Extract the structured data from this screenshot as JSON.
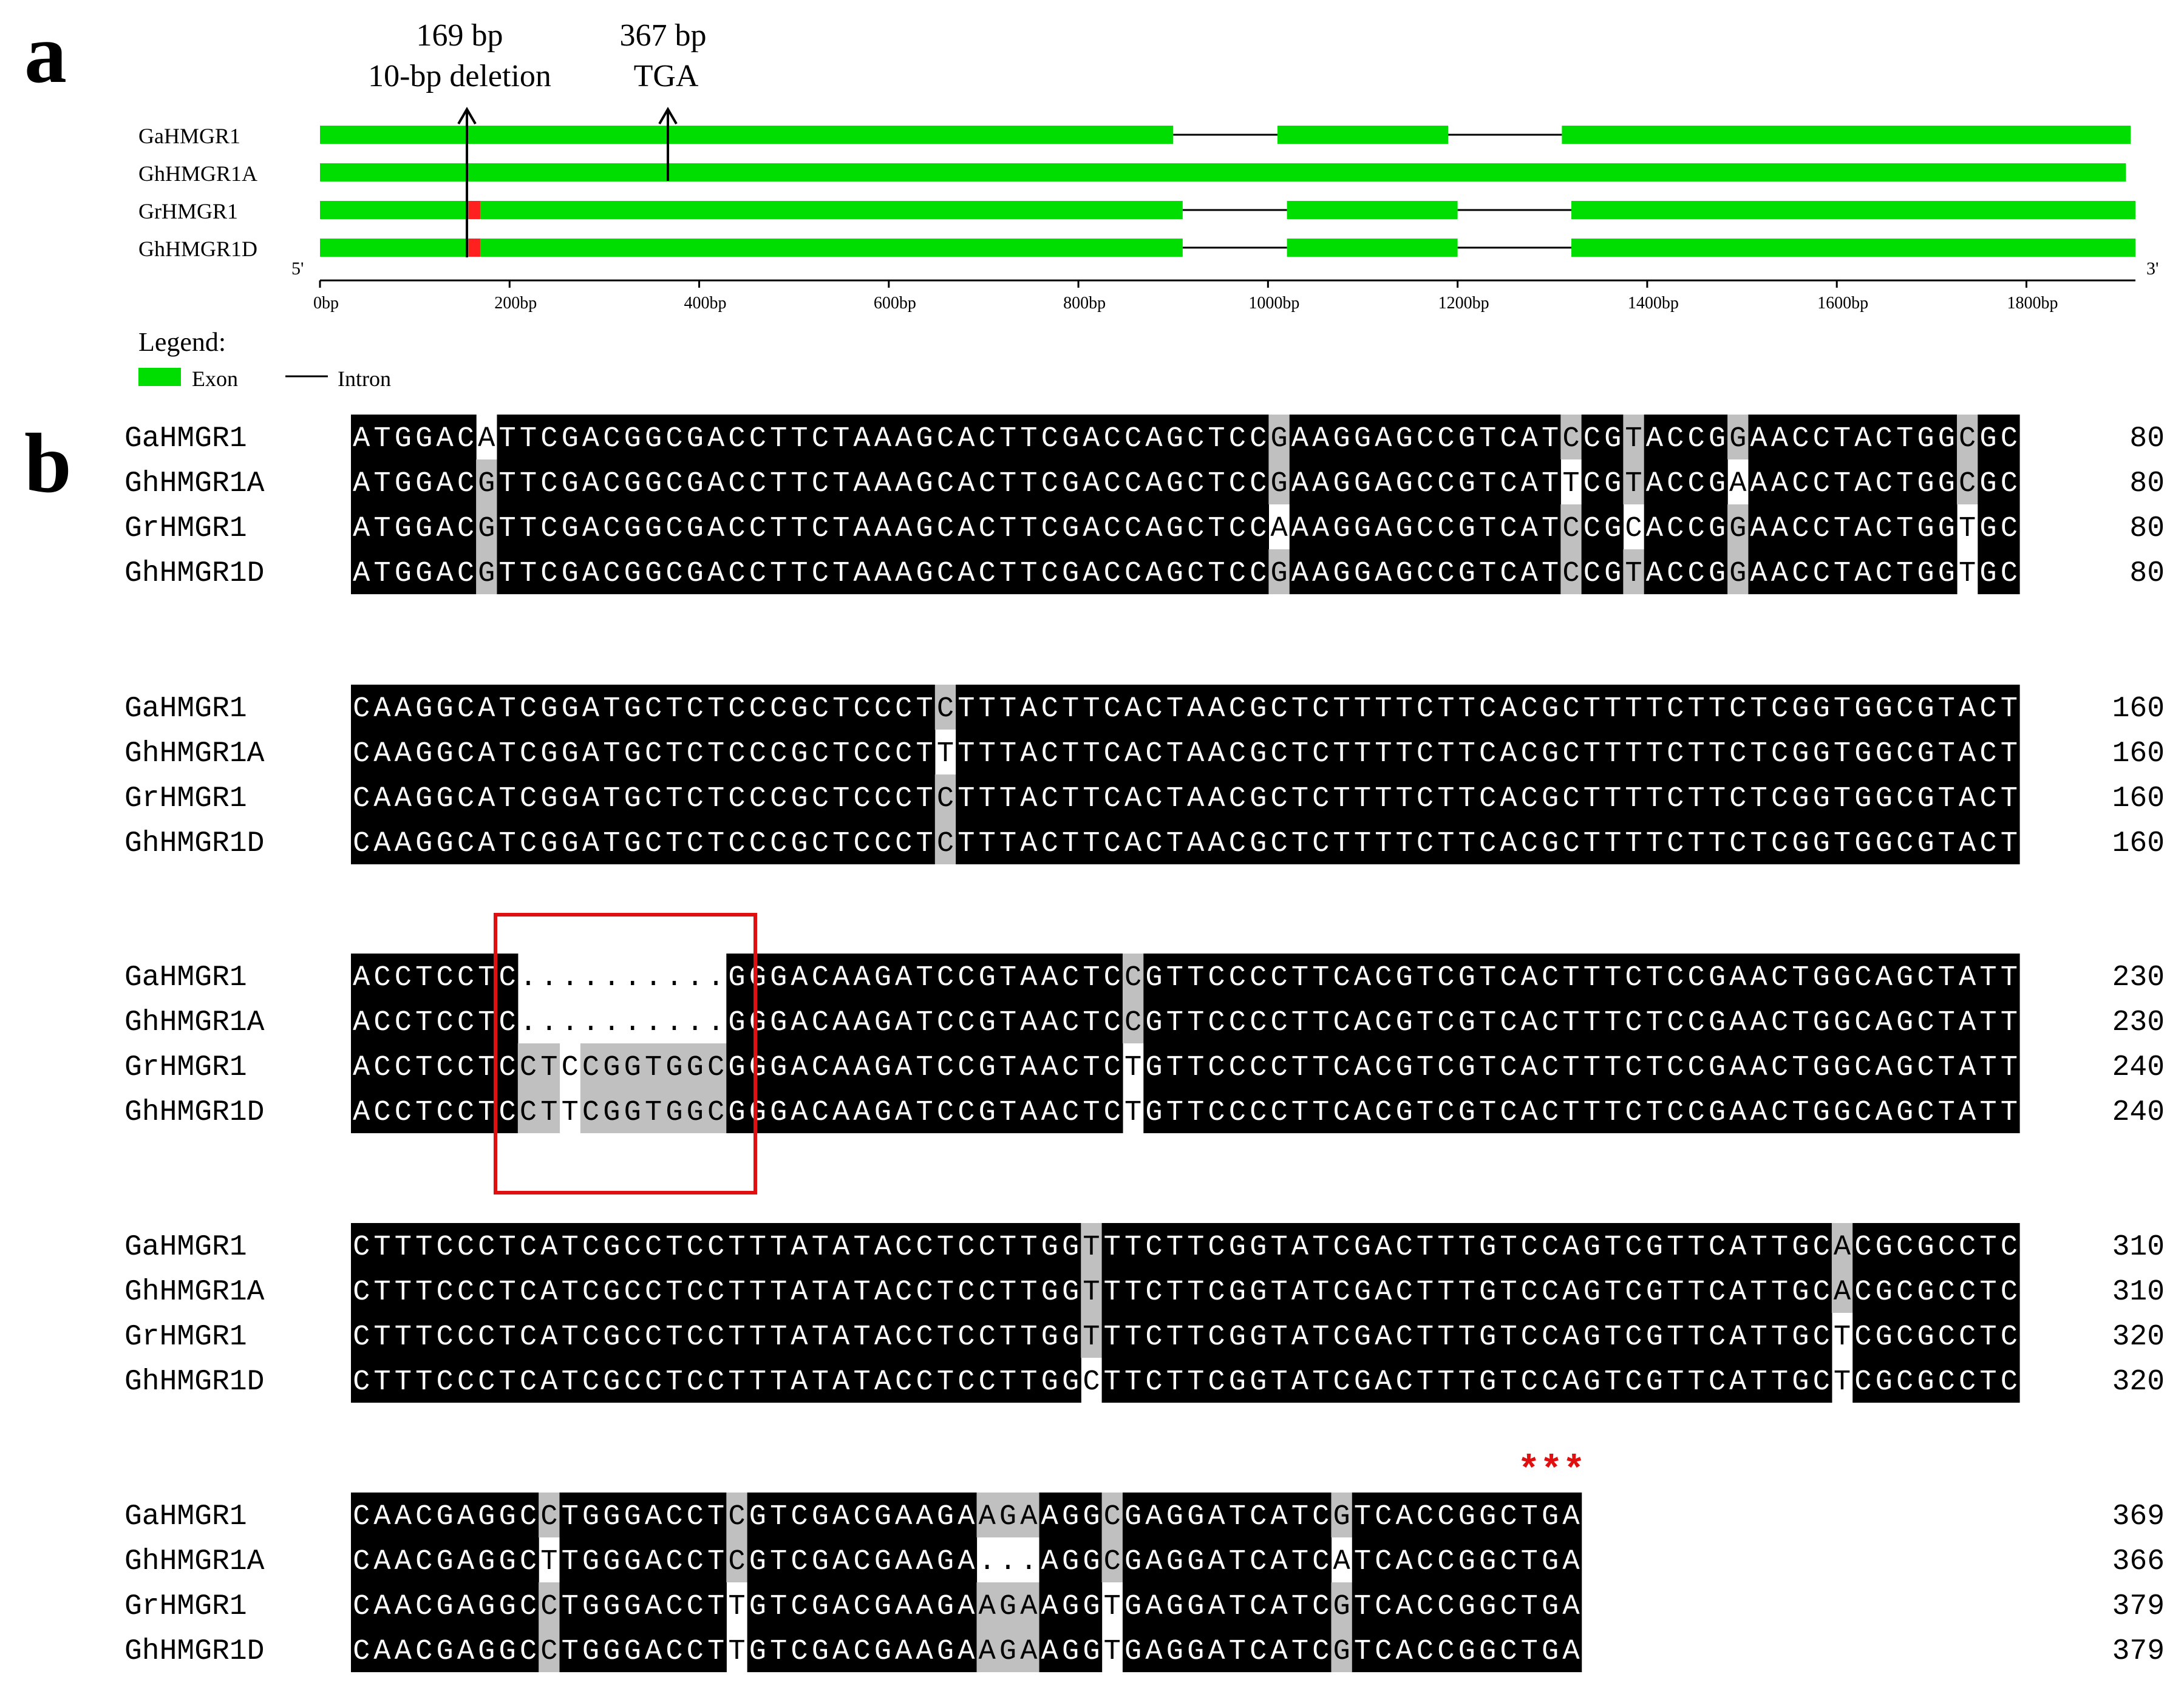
{
  "panel_a": {
    "letter": "a",
    "annotations": [
      {
        "pos": "169 bp",
        "desc": "10-bp deletion"
      },
      {
        "pos": "367 bp",
        "desc": "TGA"
      }
    ],
    "genes": [
      {
        "name": "GaHMGR1",
        "exons": [
          [
            0,
            900
          ],
          [
            1010,
            1190
          ],
          [
            1310,
            1910
          ]
        ],
        "mark_red": false
      },
      {
        "name": "GhHMGR1A",
        "exons": [
          [
            0,
            1905
          ]
        ],
        "mark_red": false
      },
      {
        "name": "GrHMGR1",
        "exons": [
          [
            0,
            910
          ],
          [
            1020,
            1200
          ],
          [
            1320,
            1915
          ]
        ],
        "mark_red": true
      },
      {
        "name": "GhHMGR1D",
        "exons": [
          [
            0,
            910
          ],
          [
            1020,
            1200
          ],
          [
            1320,
            1915
          ]
        ],
        "mark_red": true
      }
    ],
    "axis": {
      "end5": "5'",
      "end3": "3'",
      "max": 1915,
      "ticks": [
        {
          "v": 0,
          "label": "0bp"
        },
        {
          "v": 200,
          "label": "200bp"
        },
        {
          "v": 400,
          "label": "400bp"
        },
        {
          "v": 600,
          "label": "600bp"
        },
        {
          "v": 800,
          "label": "800bp"
        },
        {
          "v": 1000,
          "label": "1000bp"
        },
        {
          "v": 1200,
          "label": "1200bp"
        },
        {
          "v": 1400,
          "label": "1400bp"
        },
        {
          "v": 1600,
          "label": "1600bp"
        },
        {
          "v": 1800,
          "label": "1800bp"
        }
      ]
    },
    "legend": {
      "title": "Legend:",
      "exon_label": "Exon",
      "intron_label": "Intron"
    },
    "colors": {
      "exon": "#00dd00",
      "intron": "#000000",
      "deletion_mark": "#ff2020"
    }
  },
  "panel_b": {
    "letter": "b",
    "names": [
      "GaHMGR1",
      "GhHMGR1A",
      "GrHMGR1",
      "GhHMGR1D"
    ],
    "stars": "***",
    "colors": {
      "conserved": "#000000",
      "partial": "#c0c0c0",
      "box": "#e01010",
      "stars": "#e01010"
    },
    "blocks": [
      {
        "seqs": [
          "ATGGACATTCGACGGCGACCTTCTAAAGCACTTCGACCAGCTCCGAAGGAGCCGTCATCCGTACCGGAACCTACTGGCGC",
          "ATGGACGTTCGACGGCGACCTTCTAAAGCACTTCGACCAGCTCCGAAGGAGCCGTCATTCGTACCGAAACCTACTGGCGC",
          "ATGGACGTTCGACGGCGACCTTCTAAAGCACTTCGACCAGCTCCAAAGGAGCCGTCATCCGCACCGGAACCTACTGGTGC",
          "ATGGACGTTCGACGGCGACCTTCTAAAGCACTTCGACCAGCTCCGAAGGAGCCGTCATCCGTACCGGAACCTACTGGTGC"
        ],
        "nums": [
          "80",
          "80",
          "80",
          "80"
        ]
      },
      {
        "seqs": [
          "CAAGGCATCGGATGCTCTCCCGCTCCCTCTTTACTTCACTAACGCTCTTTTCTTCACGCTTTTCTTCTCGGTGGCGTACT",
          "CAAGGCATCGGATGCTCTCCCGCTCCCTTTTTACTTCACTAACGCTCTTTTCTTCACGCTTTTCTTCTCGGTGGCGTACT",
          "CAAGGCATCGGATGCTCTCCCGCTCCCTCTTTACTTCACTAACGCTCTTTTCTTCACGCTTTTCTTCTCGGTGGCGTACT",
          "CAAGGCATCGGATGCTCTCCCGCTCCCTCTTTACTTCACTAACGCTCTTTTCTTCACGCTTTTCTTCTCGGTGGCGTACT"
        ],
        "nums": [
          "160",
          "160",
          "160",
          "160"
        ]
      },
      {
        "seqs": [
          "ACCTCCTC..........GGGACAAGATCCGTAACTCCGTTCCCCTTCACGTCGTCACTTTCTCCGAACTGGCAGCTATT",
          "ACCTCCTC..........GGGACAAGATCCGTAACTCCGTTCCCCTTCACGTCGTCACTTTCTCCGAACTGGCAGCTATT",
          "ACCTCCTCCTCCGGTGGCGGGACAAGATCCGTAACTCTGTTCCCCTTCACGTCGTCACTTTCTCCGAACTGGCAGCTATT",
          "ACCTCCTCCTTCGGTGGCGGGACAAGATCCGTAACTCTGTTCCCCTTCACGTCGTCACTTTCTCCGAACTGGCAGCTATT"
        ],
        "nums": [
          "230",
          "230",
          "240",
          "240"
        ]
      },
      {
        "seqs": [
          "CTTTCCCTCATCGCCTCCTTTATATACCTCCTTGGTTTCTTCGGTATCGACTTTGTCCAGTCGTTCATTGCACGCGCCTC",
          "CTTTCCCTCATCGCCTCCTTTATATACCTCCTTGGTTTCTTCGGTATCGACTTTGTCCAGTCGTTCATTGCACGCGCCTC",
          "CTTTCCCTCATCGCCTCCTTTATATACCTCCTTGGTTTCTTCGGTATCGACTTTGTCCAGTCGTTCATTGCTCGCGCCTC",
          "CTTTCCCTCATCGCCTCCTTTATATACCTCCTTGGCTTCTTCGGTATCGACTTTGTCCAGTCGTTCATTGCTCGCGCCTC"
        ],
        "nums": [
          "310",
          "310",
          "320",
          "320"
        ]
      },
      {
        "seqs": [
          "CAACGAGGCCTGGGACCTCGTCGACGAAGAAGAAGGCGAGGATCATCGTCACCGGCTGA",
          "CAACGAGGCTTGGGACCTCGTCGACGAAGA...AGGCGAGGATCATCATCACCGGCTGA",
          "CAACGAGGCCTGGGACCTTGTCGACGAAGAAGAAGGTGAGGATCATCGTCACCGGCTGA",
          "CAACGAGGCCTGGGACCTTGTCGACGAAGAAGAAGGTGAGGATCATCGTCACCGGCTGA"
        ],
        "nums": [
          "369",
          "366",
          "379",
          "379"
        ]
      }
    ]
  }
}
